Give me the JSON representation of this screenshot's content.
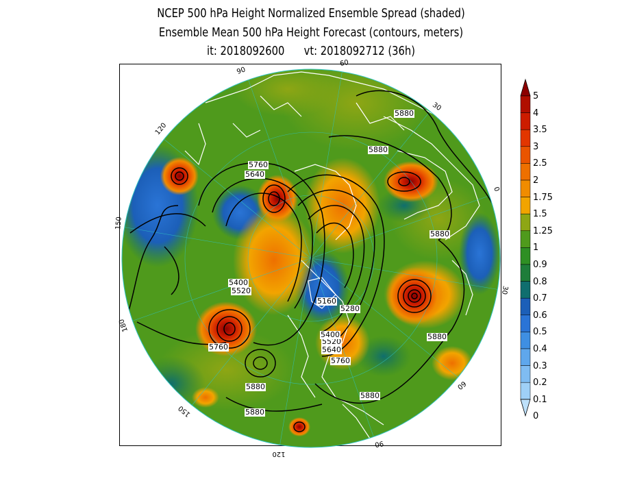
{
  "title": {
    "line1": "NCEP 500 hPa Height Normalized Ensemble Spread (shaded)",
    "line2": "Ensemble Mean 500 hPa Height Forecast (contours, meters)",
    "line3": "it: 2018092600      vt: 2018092712 (36h)"
  },
  "colorbar": {
    "labels": [
      "0",
      "0.1",
      "0.2",
      "0.3",
      "0.4",
      "0.5",
      "0.6",
      "0.7",
      "0.8",
      "0.9",
      "1",
      "1.25",
      "1.5",
      "1.75",
      "2",
      "2.5",
      "3",
      "3.5",
      "4",
      "5"
    ],
    "colors": [
      "#bde0fa",
      "#9fd0f7",
      "#7fbcf2",
      "#5fa7ec",
      "#3f8fe2",
      "#2a74d6",
      "#1c5fb8",
      "#0f6e6e",
      "#1e7d3a",
      "#2e8f24",
      "#4f9a1c",
      "#8ea614",
      "#f2a400",
      "#f08c00",
      "#ee7000",
      "#ea5400",
      "#e23600",
      "#cc1c00",
      "#b00e00",
      "#8c0000"
    ]
  },
  "meridian_labels": [
    "60",
    "30",
    "0",
    "30",
    "60",
    "90",
    "120",
    "150",
    "180",
    "150",
    "120",
    "90"
  ],
  "contour_labels": [
    "5880",
    "5880",
    "5880",
    "5880",
    "5880",
    "5880",
    "5880",
    "5760",
    "5760",
    "5760",
    "5640",
    "5640",
    "5520",
    "5520",
    "5400",
    "5400",
    "5280",
    "5160"
  ],
  "colors": {
    "ocean_base": "#4f9a1c",
    "land_outline": "#ffffff",
    "contour": "#000000",
    "graticule": "#2fc3c3"
  }
}
